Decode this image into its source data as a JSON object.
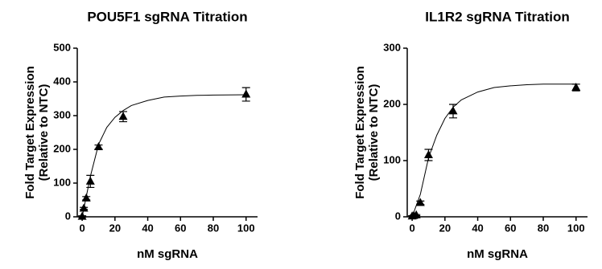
{
  "chart_data": [
    {
      "type": "scatter",
      "title": "POU5F1 sgRNA Titration",
      "x_label": "nM sgRNA",
      "y_label": [
        "Fold Target Expression",
        "(Relative to NTC)"
      ],
      "x": [
        0,
        1,
        2.5,
        5,
        10,
        25,
        100
      ],
      "values": [
        1,
        25,
        55,
        105,
        207,
        297,
        363
      ],
      "errors": [
        2,
        3,
        5,
        18,
        6,
        15,
        20
      ],
      "fit_x": [
        0,
        5,
        10,
        15,
        20,
        25,
        30,
        40,
        50,
        60,
        70,
        80,
        100
      ],
      "fit_values": [
        0,
        120,
        215,
        265,
        295,
        315,
        330,
        345,
        355,
        358,
        360,
        361,
        362
      ],
      "color": "#000000",
      "xlim": [
        -3,
        107
      ],
      "ylim": [
        0,
        500
      ],
      "xticks": [
        0,
        20,
        40,
        60,
        80,
        100
      ],
      "yticks": [
        0,
        100,
        200,
        300,
        400,
        500
      ]
    },
    {
      "type": "scatter",
      "title": "IL1R2 sgRNA Titration",
      "x_label": "nM sgRNA",
      "y_label": [
        "Fold Target Expression",
        "(Relative to NTC)"
      ],
      "x": [
        0,
        1,
        2.5,
        5,
        10,
        25,
        100
      ],
      "values": [
        1,
        2,
        3,
        25,
        110,
        188,
        230
      ],
      "errors": [
        1,
        1,
        1,
        3,
        10,
        12,
        6
      ],
      "fit_x": [
        0,
        5,
        10,
        15,
        20,
        25,
        30,
        40,
        50,
        60,
        70,
        80,
        100
      ],
      "fit_values": [
        0,
        40,
        105,
        145,
        175,
        195,
        208,
        222,
        230,
        233,
        235,
        236,
        236
      ],
      "color": "#000000",
      "xlim": [
        -3,
        107
      ],
      "ylim": [
        0,
        300
      ],
      "xticks": [
        0,
        20,
        40,
        60,
        80,
        100
      ],
      "yticks": [
        0,
        100,
        200,
        300
      ]
    }
  ]
}
